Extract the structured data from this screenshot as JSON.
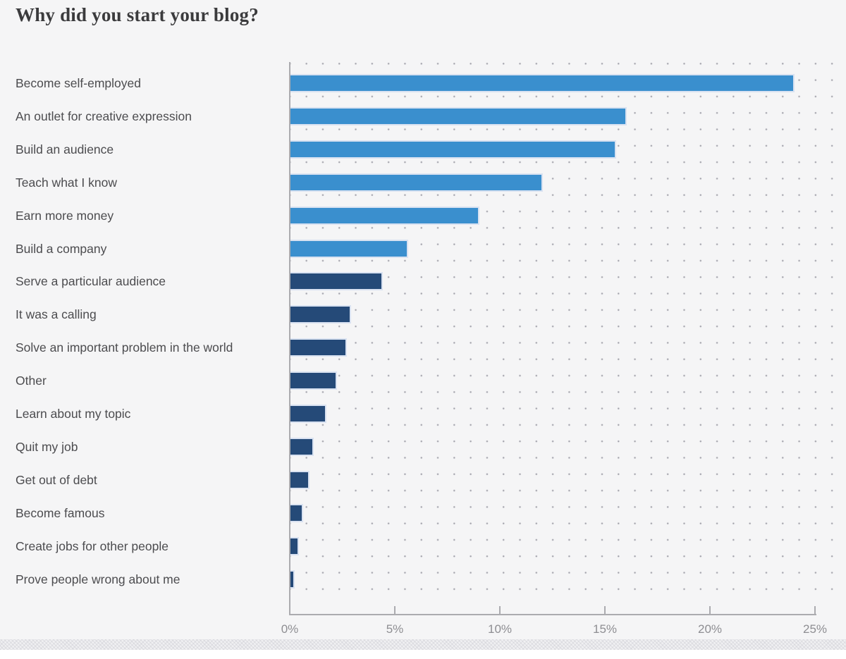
{
  "page": {
    "title": "Why did you start your blog?"
  },
  "chart_data": {
    "type": "bar",
    "orientation": "horizontal",
    "title": "Why did you start your blog?",
    "unit": "%",
    "categories": [
      "Become self-employed",
      "An outlet for creative expression",
      "Build an audience",
      "Teach what I know",
      "Earn more money",
      "Build a company",
      "Serve a particular audience",
      "It was a calling",
      "Solve an important problem in the world",
      "Other",
      "Learn about my topic",
      "Quit my job",
      "Get out of debt",
      "Become famous",
      "Create jobs for other people",
      "Prove people wrong about me"
    ],
    "values": [
      24,
      16,
      15.5,
      12,
      9,
      5.6,
      4.4,
      2.9,
      2.7,
      2.2,
      1.7,
      1.1,
      0.9,
      0.6,
      0.4,
      0.2
    ],
    "color_groups": [
      "blue",
      "blue",
      "blue",
      "blue",
      "blue",
      "blue",
      "navy",
      "navy",
      "navy",
      "navy",
      "navy",
      "navy",
      "navy",
      "navy",
      "navy",
      "navy"
    ],
    "x_ticks": [
      "0%",
      "5%",
      "10%",
      "15%",
      "20%",
      "25%"
    ],
    "xlim": [
      0,
      25
    ],
    "xlabel": "",
    "ylabel": "",
    "grid": "dot-pattern",
    "legend_position": "none",
    "colors": {
      "blue": "#3a8fce",
      "navy": "#254a78",
      "bar_border": "#d9e2f1",
      "background": "#f5f5f6",
      "axis": "#ababaf",
      "tick_label": "#8e8e92",
      "category_label": "#4c4c4f",
      "title_text": "#3b3b3d",
      "grid_dot": "#9c9ca6"
    }
  }
}
